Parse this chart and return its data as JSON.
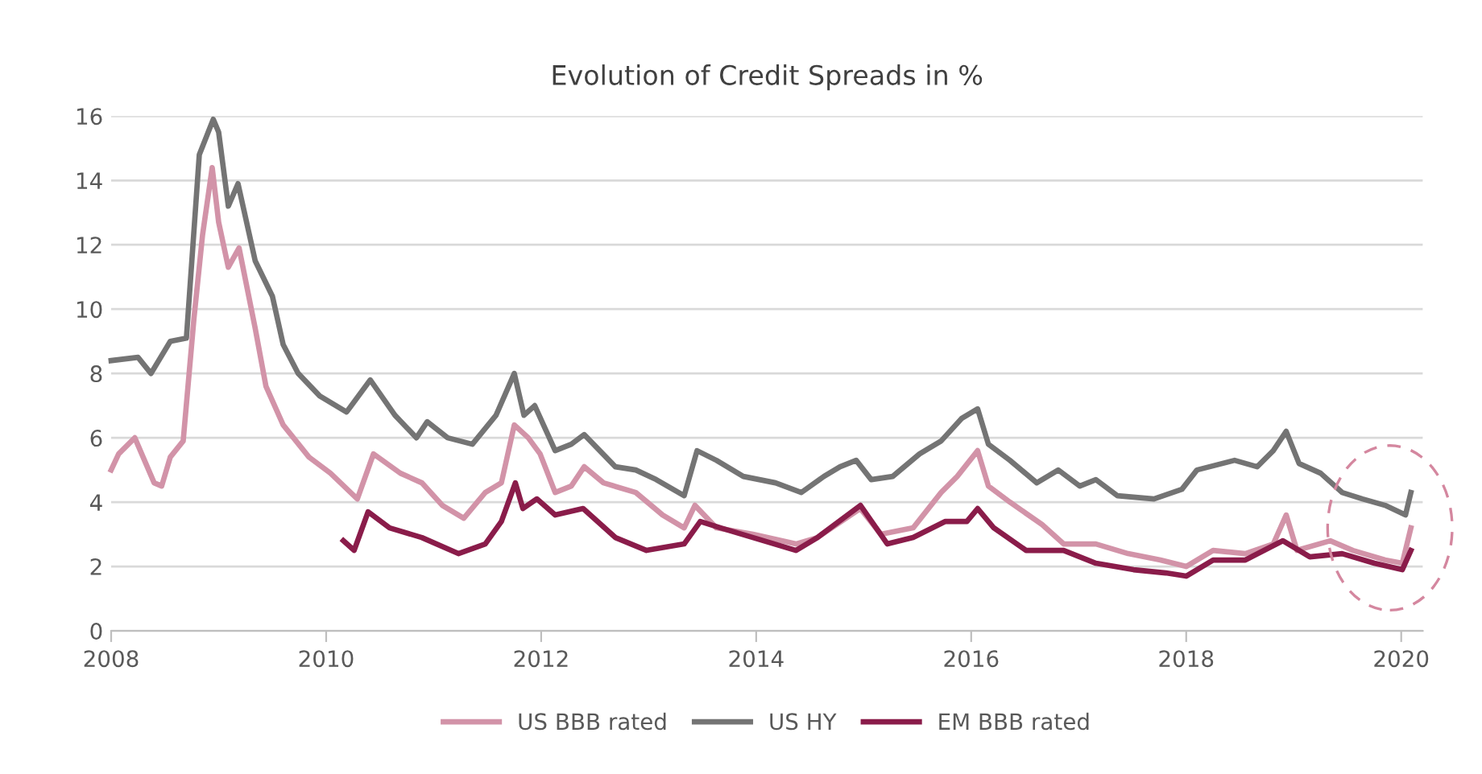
{
  "chart_data": {
    "type": "line",
    "title": "Evolution of Credit Spreads in %",
    "xlim": [
      2008,
      2020.2
    ],
    "xticks": [
      2008,
      2010,
      2012,
      2014,
      2016,
      2018,
      2020
    ],
    "ylim": [
      0,
      16
    ],
    "yticks": [
      0,
      2,
      4,
      6,
      8,
      10,
      12,
      14,
      16
    ],
    "grid": "y",
    "legend": "bottom",
    "marker": "none",
    "line_style": "solid",
    "series": [
      {
        "name": "US BBB rated",
        "color": "#d293a8",
        "x": [
          2008.0,
          2008.07,
          2008.22,
          2008.4,
          2008.47,
          2008.55,
          2008.67,
          2008.77,
          2008.85,
          2008.94,
          2009.0,
          2009.09,
          2009.19,
          2009.34,
          2009.44,
          2009.6,
          2009.84,
          2010.04,
          2010.29,
          2010.44,
          2010.69,
          2010.89,
          2011.08,
          2011.28,
          2011.48,
          2011.63,
          2011.75,
          2011.88,
          2011.99,
          2012.13,
          2012.28,
          2012.4,
          2012.58,
          2012.88,
          2013.13,
          2013.33,
          2013.43,
          2013.63,
          2013.97,
          2014.37,
          2014.57,
          2014.97,
          2015.16,
          2015.46,
          2015.72,
          2015.87,
          2016.06,
          2016.16,
          2016.36,
          2016.66,
          2016.86,
          2017.16,
          2017.46,
          2017.76,
          2018.0,
          2018.25,
          2018.55,
          2018.81,
          2018.93,
          2019.03,
          2019.34,
          2019.55,
          2019.85,
          2020.01,
          2020.09
        ],
        "values": [
          5.0,
          5.5,
          6.0,
          4.6,
          4.5,
          5.4,
          5.9,
          9.7,
          12.3,
          14.4,
          12.7,
          11.3,
          11.9,
          9.4,
          7.6,
          6.4,
          5.4,
          4.9,
          4.1,
          5.5,
          4.9,
          4.6,
          3.9,
          3.5,
          4.3,
          4.6,
          6.4,
          6.0,
          5.5,
          4.3,
          4.5,
          5.1,
          4.6,
          4.3,
          3.6,
          3.2,
          3.9,
          3.2,
          3.0,
          2.7,
          2.9,
          3.8,
          3.0,
          3.2,
          4.3,
          4.8,
          5.6,
          4.5,
          4.0,
          3.3,
          2.7,
          2.7,
          2.4,
          2.2,
          2.0,
          2.5,
          2.4,
          2.7,
          3.6,
          2.5,
          2.8,
          2.5,
          2.2,
          2.1,
          3.2
        ]
      },
      {
        "name": "US HY",
        "color": "#747474",
        "x": [
          2008.0,
          2008.25,
          2008.37,
          2008.55,
          2008.7,
          2008.82,
          2008.95,
          2009.0,
          2009.09,
          2009.18,
          2009.34,
          2009.5,
          2009.6,
          2009.74,
          2009.94,
          2010.19,
          2010.41,
          2010.64,
          2010.84,
          2010.94,
          2011.13,
          2011.36,
          2011.58,
          2011.75,
          2011.84,
          2011.94,
          2012.13,
          2012.28,
          2012.4,
          2012.69,
          2012.88,
          2013.07,
          2013.33,
          2013.45,
          2013.63,
          2013.88,
          2014.18,
          2014.42,
          2014.63,
          2014.78,
          2014.93,
          2015.07,
          2015.27,
          2015.52,
          2015.72,
          2015.91,
          2016.06,
          2016.16,
          2016.36,
          2016.61,
          2016.81,
          2017.01,
          2017.16,
          2017.36,
          2017.7,
          2017.96,
          2018.1,
          2018.45,
          2018.66,
          2018.81,
          2018.93,
          2019.05,
          2019.25,
          2019.45,
          2019.64,
          2019.85,
          2020.04,
          2020.09
        ],
        "values": [
          8.4,
          8.5,
          8.0,
          9.0,
          9.1,
          14.8,
          15.9,
          15.5,
          13.2,
          13.9,
          11.5,
          10.4,
          8.9,
          8.0,
          7.3,
          6.8,
          7.8,
          6.7,
          6.0,
          6.5,
          6.0,
          5.8,
          6.7,
          8.0,
          6.7,
          7.0,
          5.6,
          5.8,
          6.1,
          5.1,
          5.0,
          4.7,
          4.2,
          5.6,
          5.3,
          4.8,
          4.6,
          4.3,
          4.8,
          5.1,
          5.3,
          4.7,
          4.8,
          5.5,
          5.9,
          6.6,
          6.9,
          5.8,
          5.3,
          4.6,
          5.0,
          4.5,
          4.7,
          4.2,
          4.1,
          4.4,
          5.0,
          5.3,
          5.1,
          5.6,
          6.2,
          5.2,
          4.9,
          4.3,
          4.1,
          3.9,
          3.6,
          4.3
        ]
      },
      {
        "name": "EM BBB rated",
        "color": "#8a1c4a",
        "x": [
          2010.16,
          2010.26,
          2010.39,
          2010.59,
          2010.89,
          2011.23,
          2011.48,
          2011.63,
          2011.76,
          2011.83,
          2011.96,
          2012.13,
          2012.39,
          2012.69,
          2012.98,
          2013.33,
          2013.48,
          2013.67,
          2013.97,
          2014.37,
          2014.57,
          2014.97,
          2015.22,
          2015.46,
          2015.76,
          2015.96,
          2016.06,
          2016.21,
          2016.51,
          2016.86,
          2017.16,
          2017.51,
          2017.81,
          2018.0,
          2018.25,
          2018.55,
          2018.9,
          2019.15,
          2019.45,
          2019.75,
          2020.01,
          2020.09
        ],
        "values": [
          2.8,
          2.5,
          3.7,
          3.2,
          2.9,
          2.4,
          2.7,
          3.4,
          4.6,
          3.8,
          4.1,
          3.6,
          3.8,
          2.9,
          2.5,
          2.7,
          3.4,
          3.2,
          2.9,
          2.5,
          2.9,
          3.9,
          2.7,
          2.9,
          3.4,
          3.4,
          3.8,
          3.2,
          2.5,
          2.5,
          2.1,
          1.9,
          1.8,
          1.7,
          2.2,
          2.2,
          2.8,
          2.3,
          2.4,
          2.1,
          1.9,
          2.5
        ]
      }
    ]
  }
}
